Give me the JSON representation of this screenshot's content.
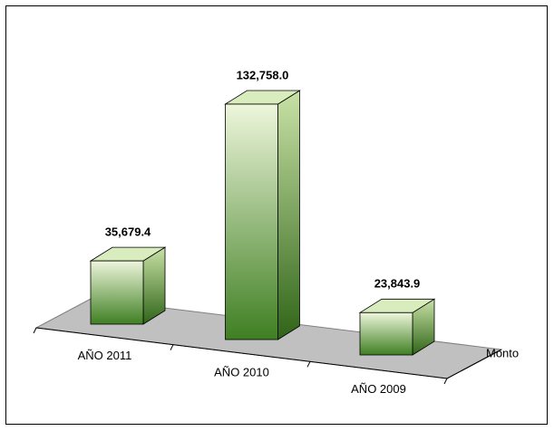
{
  "chart_data": {
    "type": "bar3d",
    "categories": [
      "AÑO 2011",
      "AÑO 2010",
      "AÑO 2009"
    ],
    "series": [
      {
        "name": "Monto",
        "color": "#3f7f22",
        "values": [
          35679.4,
          132758.0,
          23843.9
        ],
        "value_labels": [
          "35,679.4",
          "132,758.0",
          "23,843.9"
        ]
      }
    ]
  }
}
